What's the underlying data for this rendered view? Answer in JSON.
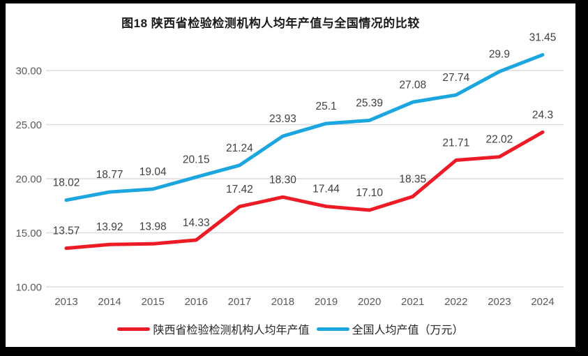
{
  "frame": {
    "border_color": "#000000",
    "background": "#ffffff"
  },
  "chart_data": {
    "type": "line",
    "title": "图18 陕西省检验检测机构人均年产值与全国情况的比较",
    "categories": [
      "2013",
      "2014",
      "2015",
      "2016",
      "2017",
      "2018",
      "2019",
      "2020",
      "2021",
      "2022",
      "2023",
      "2024"
    ],
    "series": [
      {
        "name": "陕西省检验检测机构人均年产值",
        "color": "#ed1b25",
        "values": [
          13.57,
          13.92,
          13.98,
          14.33,
          17.42,
          18.3,
          17.44,
          17.1,
          18.35,
          21.71,
          22.02,
          24.3
        ],
        "labels": [
          "13.57",
          "13.92",
          "13.98",
          "14.33",
          "17.42",
          "18.30",
          "17.44",
          "17.10",
          "18.35",
          "21.71",
          "22.02",
          "24.3"
        ]
      },
      {
        "name": "全国人均产值（万元）",
        "color": "#1ca6e0",
        "values": [
          18.02,
          18.77,
          19.04,
          20.15,
          21.24,
          23.93,
          25.1,
          25.39,
          27.08,
          27.74,
          29.9,
          31.45
        ],
        "labels": [
          "18.02",
          "18.77",
          "19.04",
          "20.15",
          "21.24",
          "23.93",
          "25.1",
          "25.39",
          "27.08",
          "27.74",
          "29.9",
          "31.45"
        ]
      }
    ],
    "xlabel": "",
    "ylabel": "",
    "ylim": [
      10,
      32.5
    ],
    "ytick_values": [
      10,
      15,
      20,
      25,
      30
    ],
    "ytick_labels": [
      "10.00",
      "15.00",
      "20.00",
      "25.00",
      "30.00"
    ],
    "grid": "horizontal",
    "legend_position": "bottom",
    "gridline_color": "#dcdcdc",
    "axis_text_color": "#595959",
    "data_label_color": "#3f3f3f"
  }
}
